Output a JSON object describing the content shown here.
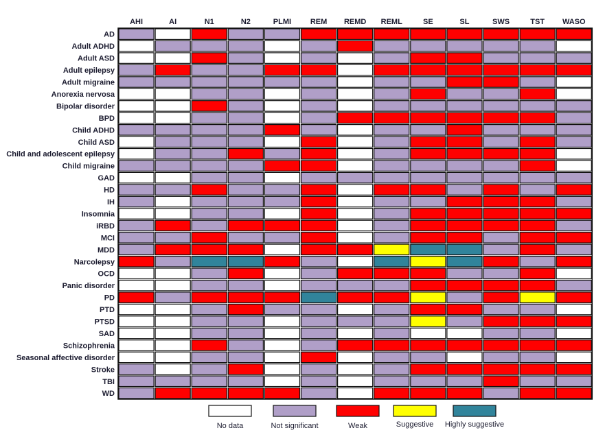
{
  "chart_data": {
    "type": "heatmap",
    "columns": [
      "AHI",
      "AI",
      "N1",
      "N2",
      "PLMI",
      "REM",
      "REMD",
      "REML",
      "SE",
      "SL",
      "SWS",
      "TST",
      "WASO"
    ],
    "rows": [
      "AD",
      "Adult ADHD",
      "Adult ASD",
      "Adult epilepsy",
      "Adult migraine",
      "Anorexia nervosa",
      "Bipolar disorder",
      "BPD",
      "Child ADHD",
      "Child ASD",
      "Child and adolescent epilepsy",
      "Child migraine",
      "GAD",
      "HD",
      "IH",
      "Insomnia",
      "iRBD",
      "MCI",
      "MDD",
      "Narcolepsy",
      "OCD",
      "Panic disorder",
      "PD",
      "PTD",
      "PTSD",
      "SAD",
      "Schizophrenia",
      "Seasonal affective disorder",
      "Stroke",
      "TBI",
      "WD"
    ],
    "legend": [
      {
        "label": "No data",
        "color": "#ffffff"
      },
      {
        "label": "Not significant",
        "color": "#b09fc8"
      },
      {
        "label": "Weak",
        "color": "#ff0000"
      },
      {
        "label": "Suggestive",
        "color": "#ffff00"
      },
      {
        "label": "Highly suggestive",
        "color": "#31849b"
      }
    ],
    "legend_position": "bottom",
    "values": [
      [
        1,
        0,
        2,
        1,
        1,
        2,
        2,
        2,
        2,
        2,
        2,
        2,
        2
      ],
      [
        0,
        1,
        1,
        1,
        0,
        1,
        2,
        1,
        1,
        1,
        1,
        1,
        0
      ],
      [
        0,
        0,
        2,
        1,
        0,
        1,
        0,
        1,
        2,
        2,
        1,
        1,
        1
      ],
      [
        1,
        2,
        1,
        1,
        2,
        2,
        0,
        2,
        2,
        2,
        2,
        2,
        2
      ],
      [
        1,
        1,
        1,
        1,
        1,
        1,
        0,
        1,
        1,
        2,
        2,
        1,
        0
      ],
      [
        0,
        0,
        1,
        1,
        0,
        1,
        0,
        1,
        2,
        1,
        1,
        2,
        0
      ],
      [
        0,
        0,
        2,
        1,
        0,
        1,
        0,
        1,
        1,
        1,
        1,
        1,
        1
      ],
      [
        0,
        0,
        1,
        1,
        0,
        1,
        2,
        2,
        2,
        2,
        2,
        2,
        1
      ],
      [
        1,
        1,
        1,
        1,
        2,
        1,
        0,
        1,
        1,
        2,
        1,
        1,
        1
      ],
      [
        0,
        1,
        1,
        1,
        0,
        2,
        0,
        1,
        2,
        2,
        1,
        2,
        1
      ],
      [
        0,
        1,
        1,
        2,
        1,
        2,
        0,
        1,
        2,
        2,
        2,
        2,
        0
      ],
      [
        1,
        1,
        1,
        1,
        2,
        2,
        0,
        1,
        1,
        1,
        1,
        2,
        0
      ],
      [
        0,
        0,
        1,
        1,
        0,
        1,
        1,
        1,
        1,
        1,
        1,
        1,
        1
      ],
      [
        1,
        1,
        2,
        1,
        1,
        2,
        0,
        2,
        2,
        1,
        2,
        1,
        2
      ],
      [
        1,
        0,
        1,
        1,
        1,
        2,
        0,
        1,
        1,
        2,
        2,
        2,
        1
      ],
      [
        0,
        0,
        1,
        1,
        0,
        2,
        0,
        1,
        2,
        2,
        2,
        2,
        2
      ],
      [
        1,
        2,
        1,
        2,
        2,
        2,
        0,
        1,
        2,
        2,
        2,
        2,
        1
      ],
      [
        1,
        1,
        2,
        1,
        1,
        2,
        0,
        1,
        2,
        2,
        1,
        2,
        2
      ],
      [
        1,
        2,
        2,
        2,
        0,
        2,
        2,
        3,
        4,
        4,
        1,
        2,
        1
      ],
      [
        2,
        1,
        4,
        4,
        2,
        1,
        0,
        4,
        3,
        4,
        2,
        1,
        2
      ],
      [
        0,
        0,
        1,
        2,
        0,
        1,
        2,
        2,
        2,
        1,
        1,
        2,
        0
      ],
      [
        0,
        0,
        1,
        1,
        0,
        1,
        1,
        1,
        2,
        2,
        2,
        2,
        1
      ],
      [
        2,
        1,
        2,
        2,
        2,
        4,
        2,
        2,
        3,
        1,
        2,
        3,
        2
      ],
      [
        0,
        0,
        1,
        2,
        1,
        1,
        0,
        1,
        2,
        2,
        1,
        1,
        0
      ],
      [
        0,
        0,
        1,
        1,
        0,
        1,
        1,
        1,
        3,
        1,
        2,
        2,
        2
      ],
      [
        0,
        0,
        1,
        1,
        0,
        1,
        0,
        1,
        0,
        0,
        1,
        1,
        0
      ],
      [
        0,
        0,
        2,
        1,
        0,
        1,
        2,
        2,
        2,
        2,
        2,
        2,
        2
      ],
      [
        0,
        0,
        1,
        1,
        0,
        2,
        0,
        1,
        1,
        0,
        1,
        1,
        0
      ],
      [
        1,
        0,
        1,
        2,
        0,
        1,
        0,
        1,
        2,
        2,
        2,
        2,
        2
      ],
      [
        1,
        1,
        1,
        1,
        0,
        1,
        0,
        1,
        1,
        1,
        2,
        1,
        1
      ],
      [
        1,
        2,
        2,
        2,
        2,
        1,
        0,
        2,
        2,
        2,
        1,
        2,
        2
      ]
    ]
  }
}
